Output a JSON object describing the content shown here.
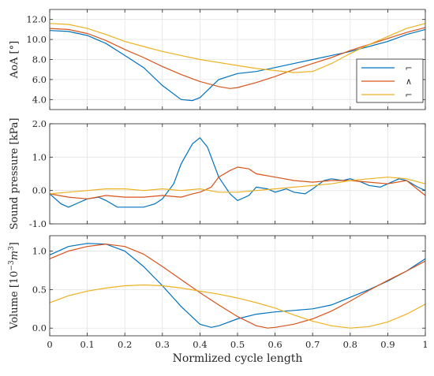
{
  "chart_data": [
    {
      "type": "line",
      "ylabel_parts": {
        "base": "AoA  [°]"
      },
      "ylim": [
        3,
        13
      ],
      "yticks": [
        4,
        6,
        8,
        10,
        12
      ],
      "ytick_labels": [
        "4.0",
        "6.0",
        "8.0",
        "10.0",
        "12.0"
      ],
      "xlim": [
        0,
        1
      ],
      "grid": true,
      "legend": {
        "position": "right",
        "entries": [
          {
            "label": "⌐",
            "color": "#0072BD"
          },
          {
            "label": "∧",
            "color": "#D95319"
          },
          {
            "label": "⌐",
            "color": "#EDB120"
          }
        ]
      },
      "series": [
        {
          "color": "#0072BD",
          "x": [
            0,
            0.05,
            0.1,
            0.15,
            0.2,
            0.25,
            0.3,
            0.35,
            0.38,
            0.4,
            0.45,
            0.5,
            0.55,
            0.6,
            0.65,
            0.7,
            0.75,
            0.8,
            0.85,
            0.9,
            0.95,
            1.0
          ],
          "y": [
            10.9,
            10.8,
            10.4,
            9.6,
            8.4,
            7.2,
            5.4,
            4.0,
            3.9,
            4.2,
            6.0,
            6.6,
            6.8,
            7.2,
            7.6,
            8.0,
            8.4,
            8.8,
            9.3,
            9.8,
            10.5,
            11.0
          ]
        },
        {
          "color": "#D95319",
          "x": [
            0,
            0.05,
            0.1,
            0.15,
            0.2,
            0.25,
            0.3,
            0.35,
            0.4,
            0.45,
            0.48,
            0.5,
            0.55,
            0.6,
            0.65,
            0.7,
            0.75,
            0.8,
            0.85,
            0.9,
            0.95,
            1.0
          ],
          "y": [
            11.1,
            11.0,
            10.6,
            9.9,
            9.0,
            8.2,
            7.3,
            6.5,
            5.8,
            5.3,
            5.1,
            5.2,
            5.7,
            6.3,
            7.0,
            7.6,
            8.2,
            8.9,
            9.5,
            10.1,
            10.7,
            11.2
          ]
        },
        {
          "color": "#EDB120",
          "x": [
            0,
            0.05,
            0.1,
            0.15,
            0.2,
            0.25,
            0.3,
            0.35,
            0.4,
            0.45,
            0.5,
            0.55,
            0.6,
            0.65,
            0.7,
            0.75,
            0.8,
            0.85,
            0.9,
            0.95,
            1.0
          ],
          "y": [
            11.6,
            11.5,
            11.1,
            10.5,
            9.8,
            9.3,
            8.8,
            8.4,
            8.0,
            7.7,
            7.4,
            7.1,
            6.9,
            6.7,
            6.8,
            7.6,
            8.6,
            9.5,
            10.3,
            11.1,
            11.6
          ]
        }
      ]
    },
    {
      "type": "line",
      "ylabel": "Sound pressure [kPa]",
      "ylim": [
        -1,
        2
      ],
      "yticks": [
        -1,
        0,
        1,
        2
      ],
      "ytick_labels": [
        "-1.0",
        "0.0",
        "1.0",
        "2.0"
      ],
      "xlim": [
        0,
        1
      ],
      "grid": true,
      "series": [
        {
          "color": "#0072BD",
          "x": [
            0,
            0.03,
            0.05,
            0.08,
            0.1,
            0.13,
            0.15,
            0.18,
            0.2,
            0.25,
            0.28,
            0.3,
            0.33,
            0.35,
            0.38,
            0.4,
            0.42,
            0.45,
            0.48,
            0.5,
            0.53,
            0.55,
            0.58,
            0.6,
            0.63,
            0.65,
            0.68,
            0.7,
            0.73,
            0.75,
            0.78,
            0.8,
            0.83,
            0.85,
            0.88,
            0.9,
            0.93,
            0.95,
            0.98,
            1.0
          ],
          "y": [
            -0.1,
            -0.4,
            -0.5,
            -0.35,
            -0.25,
            -0.2,
            -0.3,
            -0.5,
            -0.5,
            -0.5,
            -0.4,
            -0.25,
            0.2,
            0.8,
            1.4,
            1.58,
            1.3,
            0.4,
            -0.1,
            -0.3,
            -0.15,
            0.1,
            0.05,
            -0.05,
            0.05,
            -0.05,
            -0.1,
            0.05,
            0.3,
            0.35,
            0.3,
            0.35,
            0.25,
            0.15,
            0.1,
            0.2,
            0.35,
            0.3,
            0.1,
            0.0
          ]
        },
        {
          "color": "#D95319",
          "x": [
            0,
            0.05,
            0.1,
            0.15,
            0.2,
            0.25,
            0.3,
            0.35,
            0.38,
            0.4,
            0.43,
            0.45,
            0.48,
            0.5,
            0.53,
            0.55,
            0.6,
            0.65,
            0.7,
            0.75,
            0.8,
            0.85,
            0.9,
            0.95,
            1.0
          ],
          "y": [
            -0.1,
            -0.2,
            -0.25,
            -0.15,
            -0.2,
            -0.2,
            -0.15,
            -0.2,
            -0.1,
            -0.05,
            0.1,
            0.4,
            0.6,
            0.7,
            0.65,
            0.5,
            0.4,
            0.3,
            0.25,
            0.3,
            0.3,
            0.25,
            0.2,
            0.3,
            -0.15
          ]
        },
        {
          "color": "#EDB120",
          "x": [
            0,
            0.05,
            0.1,
            0.15,
            0.2,
            0.25,
            0.3,
            0.35,
            0.4,
            0.45,
            0.5,
            0.55,
            0.6,
            0.65,
            0.7,
            0.75,
            0.8,
            0.85,
            0.9,
            0.95,
            1.0
          ],
          "y": [
            -0.1,
            -0.05,
            0.0,
            0.05,
            0.05,
            0.0,
            0.05,
            0.0,
            0.05,
            -0.05,
            -0.05,
            0.0,
            0.05,
            0.1,
            0.15,
            0.2,
            0.3,
            0.35,
            0.4,
            0.35,
            0.2
          ]
        }
      ]
    },
    {
      "type": "line",
      "ylabel_parts": {
        "prefix": "Volume [10",
        "sup1": "−3",
        "mid": "m",
        "sup2": "3",
        "suffix": "]"
      },
      "ylim": [
        -0.1,
        1.2
      ],
      "yticks": [
        0,
        0.5,
        1
      ],
      "ytick_labels": [
        "0.0",
        "0.5",
        "1.0"
      ],
      "xlim": [
        0,
        1
      ],
      "xticks": [
        0,
        0.1,
        0.2,
        0.3,
        0.4,
        0.5,
        0.6,
        0.7,
        0.8,
        0.9,
        1
      ],
      "xtick_labels": [
        "0",
        "0.1",
        "0.2",
        "0.3",
        "0.4",
        "0.5",
        "0.6",
        "0.7",
        "0.8",
        "0.9",
        "1"
      ],
      "xlabel": "Normlized cycle length",
      "grid": true,
      "series": [
        {
          "color": "#0072BD",
          "x": [
            0,
            0.05,
            0.1,
            0.15,
            0.2,
            0.25,
            0.3,
            0.35,
            0.4,
            0.43,
            0.45,
            0.5,
            0.55,
            0.6,
            0.65,
            0.7,
            0.75,
            0.8,
            0.85,
            0.9,
            0.95,
            1.0
          ],
          "y": [
            0.95,
            1.06,
            1.1,
            1.09,
            1.0,
            0.8,
            0.55,
            0.28,
            0.05,
            0.01,
            0.03,
            0.12,
            0.18,
            0.21,
            0.23,
            0.25,
            0.3,
            0.4,
            0.5,
            0.61,
            0.74,
            0.9
          ]
        },
        {
          "color": "#D95319",
          "x": [
            0,
            0.05,
            0.1,
            0.15,
            0.2,
            0.25,
            0.3,
            0.35,
            0.4,
            0.45,
            0.5,
            0.55,
            0.58,
            0.6,
            0.65,
            0.7,
            0.75,
            0.8,
            0.85,
            0.9,
            0.95,
            1.0
          ],
          "y": [
            0.9,
            1.0,
            1.06,
            1.09,
            1.06,
            0.96,
            0.8,
            0.63,
            0.46,
            0.3,
            0.15,
            0.03,
            0.0,
            0.01,
            0.05,
            0.12,
            0.22,
            0.35,
            0.49,
            0.62,
            0.74,
            0.87
          ]
        },
        {
          "color": "#EDB120",
          "x": [
            0,
            0.05,
            0.1,
            0.15,
            0.2,
            0.25,
            0.3,
            0.35,
            0.4,
            0.45,
            0.5,
            0.55,
            0.6,
            0.65,
            0.7,
            0.75,
            0.8,
            0.85,
            0.9,
            0.95,
            1.0
          ],
          "y": [
            0.33,
            0.42,
            0.48,
            0.52,
            0.55,
            0.56,
            0.55,
            0.52,
            0.48,
            0.44,
            0.39,
            0.33,
            0.26,
            0.17,
            0.09,
            0.03,
            0.0,
            0.02,
            0.08,
            0.18,
            0.31
          ]
        }
      ]
    }
  ]
}
